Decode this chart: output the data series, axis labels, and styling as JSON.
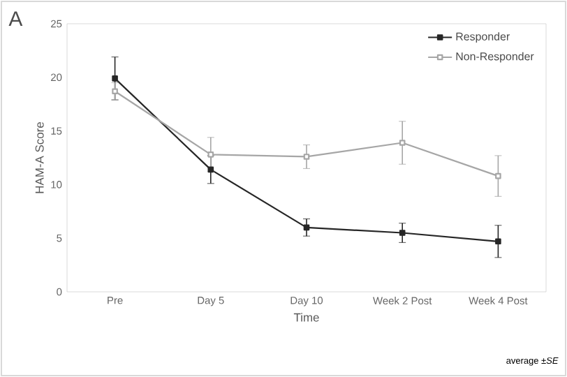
{
  "chart_data": {
    "type": "line",
    "xlabel": "Time",
    "ylabel": "HAM-A Score",
    "categories": [
      "Pre",
      "Day 5",
      "Day 10",
      "Week 2 Post",
      "Week 4 Post"
    ],
    "series": [
      {
        "name": "Responder",
        "color": "#262626",
        "values": [
          19.9,
          11.4,
          6.0,
          5.5,
          4.7
        ],
        "errors": [
          2.0,
          1.3,
          0.8,
          0.9,
          1.5
        ]
      },
      {
        "name": "Non-Responder",
        "color": "#a6a6a6",
        "values": [
          18.7,
          12.8,
          12.6,
          13.9,
          10.8
        ],
        "errors": [
          0.8,
          1.6,
          1.1,
          2.0,
          1.9
        ]
      }
    ],
    "ylim": [
      0,
      25
    ],
    "yticks": [
      0,
      5,
      10,
      15,
      20,
      25
    ],
    "legend": "top right",
    "marker": "square",
    "line_style": "solid",
    "annotations": [
      "A",
      "average ±*SE*"
    ]
  }
}
